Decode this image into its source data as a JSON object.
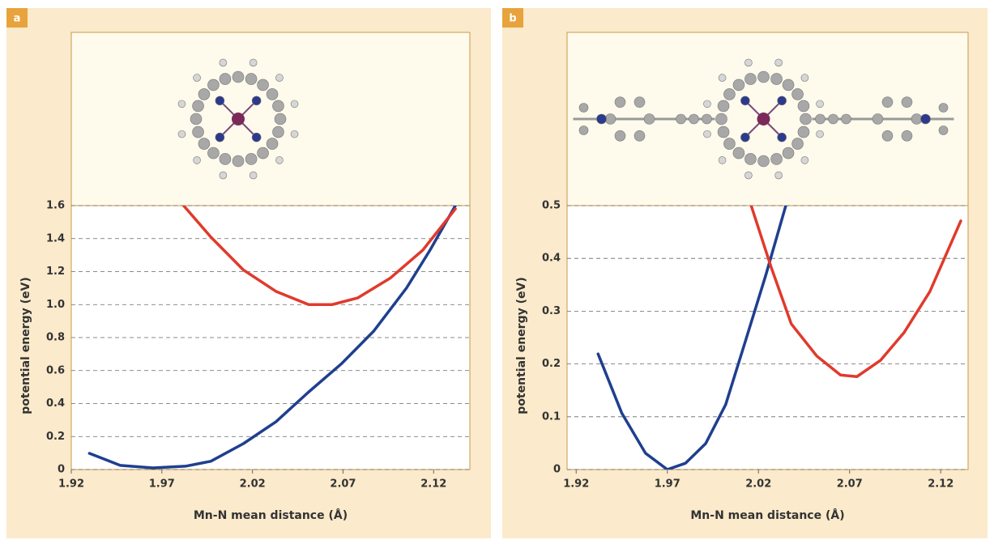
{
  "chart_data": [
    {
      "type": "line",
      "label": "a",
      "xlabel": "Mn-N mean distance (Å)",
      "ylabel": "potential energy (eV)",
      "xlim": [
        1.92,
        2.14
      ],
      "ylim": [
        0,
        1.6
      ],
      "xticks": [
        1.92,
        1.97,
        2.02,
        2.07,
        2.12
      ],
      "yticks": [
        0,
        0.2,
        0.4,
        0.6,
        0.8,
        {
          "value": 1,
          "label": "1.0"
        },
        1.2,
        1.4,
        1.6
      ],
      "grid": true,
      "series": [
        {
          "color": "#1f3f8f",
          "x": [
            1.93,
            1.947,
            1.965,
            1.983,
            1.997,
            2.015,
            2.033,
            2.051,
            2.069,
            2.087,
            2.105,
            2.118,
            2.132
          ],
          "values": [
            0.098,
            0.025,
            0.01,
            0.02,
            0.05,
            0.157,
            0.29,
            0.47,
            0.64,
            0.84,
            1.1,
            1.33,
            1.6
          ]
        },
        {
          "color": "#e03a2c",
          "x": [
            1.982,
            1.997,
            2.015,
            2.033,
            2.051,
            2.064,
            2.078,
            2.096,
            2.114,
            2.132
          ],
          "values": [
            1.6,
            1.41,
            1.21,
            1.08,
            1.0,
            1.0,
            1.04,
            1.16,
            1.33,
            1.58
          ]
        }
      ]
    },
    {
      "type": "line",
      "label": "b",
      "xlabel": "Mn-N mean distance (Å)",
      "ylabel": "potential energy (eV)",
      "xlim": [
        1.915,
        2.135
      ],
      "ylim": [
        0,
        0.5
      ],
      "xticks": [
        1.92,
        1.97,
        2.02,
        2.07,
        2.12
      ],
      "yticks": [
        0,
        0.1,
        0.2,
        0.3,
        0.4,
        0.5
      ],
      "grid": true,
      "series": [
        {
          "color": "#1f3f8f",
          "x": [
            1.932,
            1.945,
            1.958,
            1.97,
            1.98,
            1.991,
            2.002,
            2.013,
            2.024,
            2.035
          ],
          "values": [
            0.219,
            0.107,
            0.031,
            0,
            0.012,
            0.049,
            0.123,
            0.245,
            0.368,
            0.5
          ]
        },
        {
          "color": "#e03a2c",
          "x": [
            2.016,
            2.027,
            2.038,
            2.052,
            2.065,
            2.074,
            2.087,
            2.1,
            2.114,
            2.131
          ],
          "values": [
            0.5,
            0.383,
            0.276,
            0.215,
            0.179,
            0.176,
            0.207,
            0.26,
            0.337,
            0.471
          ]
        }
      ]
    }
  ]
}
